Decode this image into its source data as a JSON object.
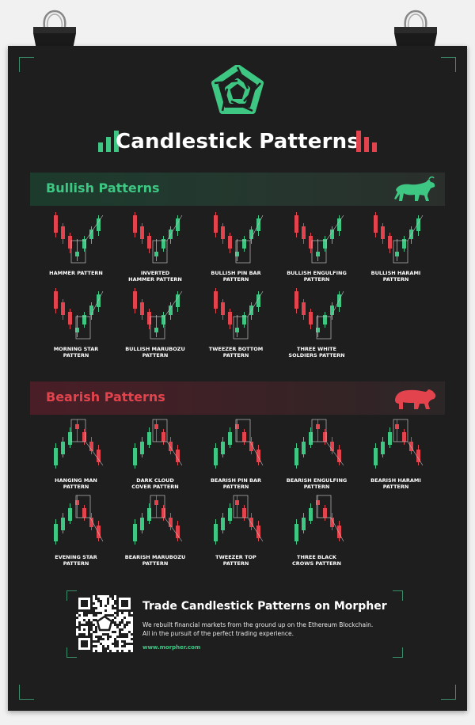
{
  "title": "Candlestick Patterns",
  "colors": {
    "bull": "#3ec683",
    "bear": "#e3434d",
    "background": "#1e1e1e",
    "text": "#ffffff"
  },
  "icons": [
    "logo-icon",
    "bull-icon",
    "bear-icon",
    "bars-up-icon",
    "bars-down-icon",
    "qr-code-icon",
    "binder-clip-icon"
  ],
  "bullish": {
    "heading": "Bullish Patterns",
    "patterns": [
      {
        "name": "HAMMER PATTERN",
        "lines": [
          "HAMMER PATTERN"
        ]
      },
      {
        "name": "INVERTED HAMMER PATTERN",
        "lines": [
          "INVERTED",
          "HAMMER PATTERN"
        ]
      },
      {
        "name": "BULLISH PIN BAR PATTERN",
        "lines": [
          "BULLISH PIN BAR",
          "PATTERN"
        ]
      },
      {
        "name": "BULLISH ENGULFING PATTERN",
        "lines": [
          "BULLISH ENGULFING",
          "PATTERN"
        ]
      },
      {
        "name": "BULLISH HARAMI PATTERN",
        "lines": [
          "BULLISH HARAMI",
          "PATTERN"
        ]
      },
      {
        "name": "MORNING STAR PATTERN",
        "lines": [
          "MORNING STAR",
          "PATTERN"
        ]
      },
      {
        "name": "BULLISH MARUBOZU PATTERN",
        "lines": [
          "BULLISH MARUBOZU",
          "PATTERN"
        ]
      },
      {
        "name": "TWEEZER BOTTOM PATTERN",
        "lines": [
          "TWEEZER BOTTOM",
          "PATTERN"
        ]
      },
      {
        "name": "THREE WHITE SOLDIERS PATTERN",
        "lines": [
          "THREE WHITE",
          "SOLDIERS PATTERN"
        ]
      }
    ]
  },
  "bearish": {
    "heading": "Bearish Patterns",
    "patterns": [
      {
        "name": "HANGING MAN PATTERN",
        "lines": [
          "HANGING MAN",
          "PATTERN"
        ]
      },
      {
        "name": "DARK CLOUD COVER PATTERN",
        "lines": [
          "DARK CLOUD",
          "COVER PATTERN"
        ]
      },
      {
        "name": "BEARISH PIN BAR PATTERN",
        "lines": [
          "BEARISH PIN BAR",
          "PATTERN"
        ]
      },
      {
        "name": "BEARISH ENGULFING PATTERN",
        "lines": [
          "BEARISH ENGULFING",
          "PATTERN"
        ]
      },
      {
        "name": "BEARISH HARAMI PATTERN",
        "lines": [
          "BEARISH HARAMI",
          "PATTERN"
        ]
      },
      {
        "name": "EVENING STAR PATTERN",
        "lines": [
          "EVENING STAR",
          "PATTERN"
        ]
      },
      {
        "name": "BEARISH MARUBOZU PATTERN",
        "lines": [
          "BEARISH MARUBOZU",
          "PATTERN"
        ]
      },
      {
        "name": "TWEEZER TOP PATTERN",
        "lines": [
          "TWEEZER TOP",
          "PATTERN"
        ]
      },
      {
        "name": "THREE BLACK CROWS PATTERN",
        "lines": [
          "THREE BLACK",
          "CROWS PATTERN"
        ]
      }
    ]
  },
  "footer": {
    "title": "Trade Candlestick Patterns on Morpher",
    "desc1": "We rebuilt financial markets from the ground up on the Ethereum Blockchain.",
    "desc2": "All in the pursuit of the perfect trading experience.",
    "url": "www.morpher.com"
  }
}
